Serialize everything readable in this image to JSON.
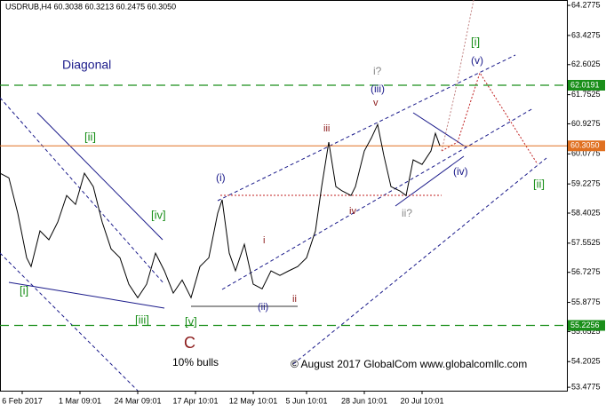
{
  "chart_data": {
    "type": "line",
    "title": "USDRUB,H4  60.3038 60.3213 60.2475 60.3050",
    "color": "#000000",
    "x": [
      0,
      2,
      4,
      6,
      7,
      9,
      11,
      13,
      15,
      17,
      19,
      21,
      23,
      25,
      27,
      29,
      31,
      33,
      35,
      37,
      39,
      41,
      43,
      45,
      47,
      49,
      50,
      51.6,
      53,
      55,
      57,
      59,
      61,
      63,
      65,
      67,
      69,
      71,
      72.4,
      74,
      75.6,
      77,
      79,
      80,
      82,
      83.6,
      85,
      86.4,
      88,
      90,
      91.4,
      93,
      95,
      97,
      98,
      99
    ],
    "values": [
      59.53,
      59.4,
      58.4,
      57.14,
      56.89,
      57.9,
      57.65,
      58.15,
      58.9,
      58.65,
      59.53,
      59.15,
      58.15,
      57.39,
      57.14,
      56.39,
      56.01,
      56.39,
      57.27,
      56.77,
      56.14,
      56.51,
      56.01,
      56.89,
      57.14,
      58.4,
      58.78,
      57.27,
      56.77,
      57.52,
      56.39,
      56.26,
      56.77,
      56.64,
      56.77,
      56.89,
      57.14,
      57.9,
      59.15,
      60.41,
      59.15,
      59.03,
      58.9,
      59.15,
      60.16,
      60.53,
      60.91,
      60.03,
      59.15,
      59.03,
      58.9,
      59.91,
      59.78,
      60.16,
      60.66,
      60.31
    ],
    "xlim": [
      0,
      127.6
    ],
    "ylim": [
      53.38,
      64.43
    ],
    "xticks": [
      {
        "value": 5,
        "label": "6 Feb 2017"
      },
      {
        "value": 18,
        "label": "1 Mar 09:01"
      },
      {
        "value": 31,
        "label": "24 Mar 09:01"
      },
      {
        "value": 44,
        "label": "17 Apr 10:01"
      },
      {
        "value": 57,
        "label": "12 May 10:01"
      },
      {
        "value": 69,
        "label": "5 Jun 10:01"
      },
      {
        "value": 82,
        "label": "28 Jun 10:01"
      },
      {
        "value": 95,
        "label": "20 Jul 10:01"
      }
    ],
    "yticks": [
      64.2775,
      63.4275,
      62.6025,
      61.7525,
      60.9275,
      60.0775,
      59.2275,
      58.4025,
      57.5525,
      56.7275,
      55.8775,
      55.0525,
      54.2025,
      53.4775
    ],
    "levels": [
      {
        "value": 62.0191,
        "color": "#1a8f1a"
      },
      {
        "value": 60.305,
        "label": "60.3050",
        "color": "#e07020"
      },
      {
        "value": 55.2256,
        "color": "#1a8f1a"
      }
    ],
    "annotations": [
      "Diagonal",
      "[ii]",
      "[iv]",
      "[i]",
      "[iii]",
      "[v]",
      "C",
      "10% bulls",
      "(i)",
      "i",
      "ii",
      "(ii)",
      "iii",
      "iv",
      "v",
      "(iii)",
      "i?",
      "ii?",
      "(iv)",
      "(v)",
      "[i]",
      "[ii]",
      "© August 2017 GlobalCom www.globalcomllc.com"
    ]
  }
}
